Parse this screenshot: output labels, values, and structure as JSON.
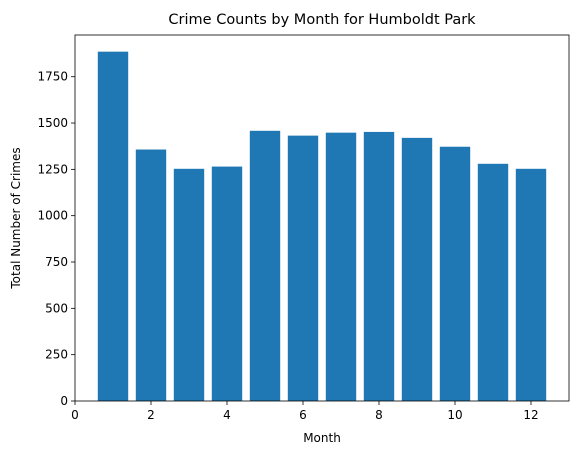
{
  "chart_data": {
    "type": "bar",
    "title": "Crime Counts by Month for Humboldt Park",
    "xlabel": "Month",
    "ylabel": "Total Number of Crimes",
    "x": [
      1,
      2,
      3,
      4,
      5,
      6,
      7,
      8,
      9,
      10,
      11,
      12
    ],
    "values": [
      1885,
      1357,
      1253,
      1265,
      1458,
      1432,
      1448,
      1452,
      1420,
      1372,
      1280,
      1253
    ],
    "xlim": [
      0,
      13
    ],
    "ylim": [
      0,
      1975
    ],
    "xticks": [
      0,
      2,
      4,
      6,
      8,
      10,
      12
    ],
    "yticks": [
      0,
      250,
      500,
      750,
      1000,
      1250,
      1500,
      1750
    ],
    "bar_color": "#1f77b4",
    "grid": false,
    "legend": "none"
  }
}
